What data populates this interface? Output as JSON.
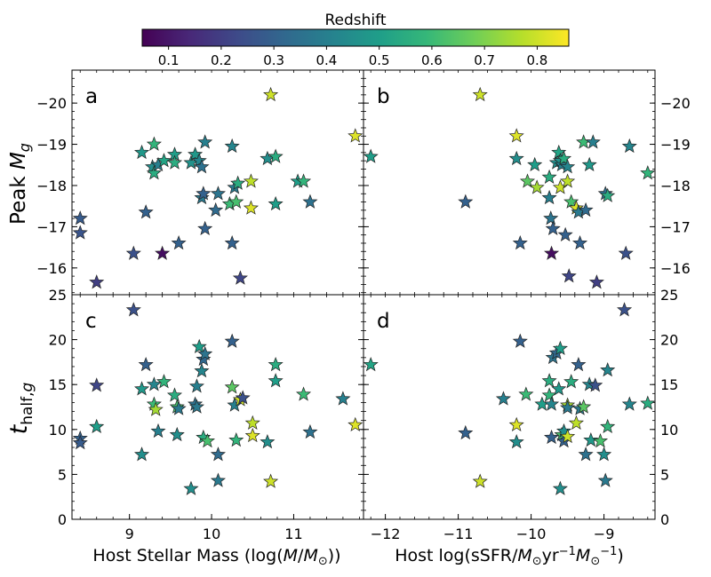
{
  "colorbar": {
    "label": "Redshift",
    "range": [
      0.05,
      0.86
    ],
    "ticks": [
      0.1,
      0.2,
      0.3,
      0.4,
      0.5,
      0.6,
      0.7,
      0.8
    ],
    "tick_labels": [
      "0.1",
      "0.2",
      "0.3",
      "0.4",
      "0.5",
      "0.6",
      "0.7",
      "0.8"
    ],
    "colormap": "viridis",
    "stops": [
      "#440154",
      "#482878",
      "#3e4a89",
      "#31688e",
      "#26828e",
      "#1f9e89",
      "#35b779",
      "#6ece58",
      "#b5de2b",
      "#fde725"
    ]
  },
  "chart_data": [
    {
      "panel_label": "a",
      "type": "scatter",
      "marker": "star",
      "xlabel": "",
      "ylabel": "Peak M_g",
      "xlim": [
        8.3,
        11.85
      ],
      "ylim": [
        -15.35,
        -20.8
      ],
      "y_inverted": true,
      "xticks": [],
      "xtick_labels": [],
      "yticks": [
        -16,
        -17,
        -18,
        -19,
        -20
      ],
      "ytick_labels": [
        "−16",
        "−17",
        "−18",
        "−19",
        "−20"
      ],
      "ytick_side": "left",
      "points": [
        {
          "x": 8.4,
          "y": -17.2,
          "z": 0.28
        },
        {
          "x": 8.4,
          "y": -16.85,
          "z": 0.26
        },
        {
          "x": 8.6,
          "y": -15.65,
          "z": 0.2
        },
        {
          "x": 9.05,
          "y": -16.35,
          "z": 0.25
        },
        {
          "x": 9.15,
          "y": -18.8,
          "z": 0.48
        },
        {
          "x": 9.2,
          "y": -17.35,
          "z": 0.3
        },
        {
          "x": 9.28,
          "y": -18.45,
          "z": 0.45
        },
        {
          "x": 9.3,
          "y": -19.0,
          "z": 0.58
        },
        {
          "x": 9.3,
          "y": -18.3,
          "z": 0.55
        },
        {
          "x": 9.35,
          "y": -18.5,
          "z": 0.4
        },
        {
          "x": 9.4,
          "y": -16.35,
          "z": 0.08
        },
        {
          "x": 9.42,
          "y": -18.6,
          "z": 0.52
        },
        {
          "x": 9.55,
          "y": -18.75,
          "z": 0.5
        },
        {
          "x": 9.55,
          "y": -18.55,
          "z": 0.55
        },
        {
          "x": 9.6,
          "y": -16.6,
          "z": 0.3
        },
        {
          "x": 9.75,
          "y": -18.55,
          "z": 0.46
        },
        {
          "x": 9.8,
          "y": -18.75,
          "z": 0.48
        },
        {
          "x": 9.85,
          "y": -18.6,
          "z": 0.42
        },
        {
          "x": 9.88,
          "y": -18.45,
          "z": 0.35
        },
        {
          "x": 9.88,
          "y": -17.7,
          "z": 0.38
        },
        {
          "x": 9.9,
          "y": -17.8,
          "z": 0.3
        },
        {
          "x": 9.92,
          "y": -19.05,
          "z": 0.4
        },
        {
          "x": 9.92,
          "y": -16.95,
          "z": 0.3
        },
        {
          "x": 10.05,
          "y": -17.4,
          "z": 0.33
        },
        {
          "x": 10.08,
          "y": -17.8,
          "z": 0.36
        },
        {
          "x": 10.22,
          "y": -17.55,
          "z": 0.6
        },
        {
          "x": 10.25,
          "y": -18.95,
          "z": 0.42
        },
        {
          "x": 10.25,
          "y": -16.6,
          "z": 0.3
        },
        {
          "x": 10.28,
          "y": -17.95,
          "z": 0.38
        },
        {
          "x": 10.3,
          "y": -17.6,
          "z": 0.62
        },
        {
          "x": 10.32,
          "y": -18.05,
          "z": 0.55
        },
        {
          "x": 10.35,
          "y": -15.75,
          "z": 0.22
        },
        {
          "x": 10.48,
          "y": -18.1,
          "z": 0.78
        },
        {
          "x": 10.48,
          "y": -17.45,
          "z": 0.82
        },
        {
          "x": 10.68,
          "y": -18.65,
          "z": 0.45
        },
        {
          "x": 10.72,
          "y": -20.2,
          "z": 0.8
        },
        {
          "x": 10.78,
          "y": -18.7,
          "z": 0.55
        },
        {
          "x": 10.78,
          "y": -17.55,
          "z": 0.5
        },
        {
          "x": 11.05,
          "y": -18.1,
          "z": 0.5
        },
        {
          "x": 11.12,
          "y": -18.1,
          "z": 0.58
        },
        {
          "x": 11.2,
          "y": -17.6,
          "z": 0.35
        },
        {
          "x": 11.75,
          "y": -19.2,
          "z": 0.82
        }
      ]
    },
    {
      "panel_label": "b",
      "type": "scatter",
      "marker": "star",
      "xlabel": "",
      "ylabel": "",
      "xlim": [
        -12.3,
        -8.3
      ],
      "ylim": [
        -15.35,
        -20.8
      ],
      "y_inverted": true,
      "xticks": [],
      "xtick_labels": [],
      "yticks": [
        -16,
        -17,
        -18,
        -19,
        -20
      ],
      "ytick_labels": [
        "−16",
        "−17",
        "−18",
        "−19",
        "−20"
      ],
      "ytick_side": "right",
      "points": [
        {
          "x": -12.2,
          "y": -18.7,
          "z": 0.5
        },
        {
          "x": -10.9,
          "y": -17.6,
          "z": 0.3
        },
        {
          "x": -10.7,
          "y": -20.2,
          "z": 0.8
        },
        {
          "x": -10.2,
          "y": -19.2,
          "z": 0.82
        },
        {
          "x": -10.2,
          "y": -18.65,
          "z": 0.45
        },
        {
          "x": -10.15,
          "y": -16.6,
          "z": 0.3
        },
        {
          "x": -10.05,
          "y": -18.1,
          "z": 0.65
        },
        {
          "x": -9.95,
          "y": -18.5,
          "z": 0.5
        },
        {
          "x": -9.92,
          "y": -17.95,
          "z": 0.75
        },
        {
          "x": -9.75,
          "y": -18.2,
          "z": 0.55
        },
        {
          "x": -9.75,
          "y": -17.7,
          "z": 0.4
        },
        {
          "x": -9.73,
          "y": -17.2,
          "z": 0.36
        },
        {
          "x": -9.72,
          "y": -16.35,
          "z": 0.08
        },
        {
          "x": -9.7,
          "y": -16.95,
          "z": 0.3
        },
        {
          "x": -9.65,
          "y": -18.55,
          "z": 0.45
        },
        {
          "x": -9.62,
          "y": -18.8,
          "z": 0.52
        },
        {
          "x": -9.6,
          "y": -18.6,
          "z": 0.46
        },
        {
          "x": -9.6,
          "y": -17.95,
          "z": 0.8
        },
        {
          "x": -9.58,
          "y": -18.5,
          "z": 0.4
        },
        {
          "x": -9.55,
          "y": -18.65,
          "z": 0.55
        },
        {
          "x": -9.53,
          "y": -16.8,
          "z": 0.3
        },
        {
          "x": -9.5,
          "y": -18.45,
          "z": 0.42
        },
        {
          "x": -9.5,
          "y": -18.1,
          "z": 0.78
        },
        {
          "x": -9.48,
          "y": -15.8,
          "z": 0.22
        },
        {
          "x": -9.45,
          "y": -17.6,
          "z": 0.62
        },
        {
          "x": -9.38,
          "y": -17.45,
          "z": 0.82
        },
        {
          "x": -9.35,
          "y": -17.35,
          "z": 0.38
        },
        {
          "x": -9.33,
          "y": -16.6,
          "z": 0.3
        },
        {
          "x": -9.28,
          "y": -19.05,
          "z": 0.6
        },
        {
          "x": -9.25,
          "y": -17.4,
          "z": 0.33
        },
        {
          "x": -9.2,
          "y": -18.5,
          "z": 0.48
        },
        {
          "x": -9.15,
          "y": -19.05,
          "z": 0.4
        },
        {
          "x": -9.1,
          "y": -15.65,
          "z": 0.2
        },
        {
          "x": -8.98,
          "y": -17.8,
          "z": 0.35
        },
        {
          "x": -8.95,
          "y": -17.75,
          "z": 0.55
        },
        {
          "x": -8.7,
          "y": -16.35,
          "z": 0.25
        },
        {
          "x": -8.65,
          "y": -18.95,
          "z": 0.42
        },
        {
          "x": -8.4,
          "y": -18.3,
          "z": 0.58
        }
      ]
    },
    {
      "panel_label": "c",
      "type": "scatter",
      "marker": "star",
      "xlabel": "Host Stellar Mass (log(M/M☉))",
      "ylabel": "t_half,g",
      "xlim": [
        8.3,
        11.85
      ],
      "ylim": [
        0,
        25
      ],
      "y_inverted": false,
      "xticks": [
        9,
        10,
        11
      ],
      "xtick_labels": [
        "9",
        "10",
        "11"
      ],
      "yticks": [
        0,
        5,
        10,
        15,
        20,
        25
      ],
      "ytick_labels": [
        "0",
        "5",
        "10",
        "15",
        "20",
        "25"
      ],
      "ytick_side": "left",
      "points": [
        {
          "x": 8.4,
          "y": 9.0,
          "z": 0.3
        },
        {
          "x": 8.4,
          "y": 8.5,
          "z": 0.28
        },
        {
          "x": 8.6,
          "y": 14.9,
          "z": 0.22
        },
        {
          "x": 8.6,
          "y": 10.3,
          "z": 0.5
        },
        {
          "x": 9.05,
          "y": 23.3,
          "z": 0.25
        },
        {
          "x": 9.15,
          "y": 14.5,
          "z": 0.48
        },
        {
          "x": 9.15,
          "y": 7.2,
          "z": 0.45
        },
        {
          "x": 9.2,
          "y": 17.2,
          "z": 0.3
        },
        {
          "x": 9.3,
          "y": 15.0,
          "z": 0.42
        },
        {
          "x": 9.3,
          "y": 12.8,
          "z": 0.6
        },
        {
          "x": 9.32,
          "y": 12.2,
          "z": 0.75
        },
        {
          "x": 9.35,
          "y": 9.8,
          "z": 0.4
        },
        {
          "x": 9.42,
          "y": 15.3,
          "z": 0.58
        },
        {
          "x": 9.55,
          "y": 13.8,
          "z": 0.55
        },
        {
          "x": 9.58,
          "y": 12.5,
          "z": 0.62
        },
        {
          "x": 9.58,
          "y": 9.4,
          "z": 0.45
        },
        {
          "x": 9.6,
          "y": 12.3,
          "z": 0.38
        },
        {
          "x": 9.75,
          "y": 3.4,
          "z": 0.45
        },
        {
          "x": 9.8,
          "y": 12.8,
          "z": 0.35
        },
        {
          "x": 9.82,
          "y": 12.5,
          "z": 0.38
        },
        {
          "x": 9.82,
          "y": 14.8,
          "z": 0.4
        },
        {
          "x": 9.85,
          "y": 19.2,
          "z": 0.5
        },
        {
          "x": 9.88,
          "y": 16.5,
          "z": 0.42
        },
        {
          "x": 9.9,
          "y": 17.8,
          "z": 0.32
        },
        {
          "x": 9.92,
          "y": 18.4,
          "z": 0.36
        },
        {
          "x": 9.9,
          "y": 9.1,
          "z": 0.55
        },
        {
          "x": 9.95,
          "y": 8.7,
          "z": 0.62
        },
        {
          "x": 10.08,
          "y": 4.3,
          "z": 0.38
        },
        {
          "x": 10.08,
          "y": 7.2,
          "z": 0.33
        },
        {
          "x": 10.25,
          "y": 19.8,
          "z": 0.3
        },
        {
          "x": 10.25,
          "y": 14.7,
          "z": 0.65
        },
        {
          "x": 10.28,
          "y": 12.7,
          "z": 0.4
        },
        {
          "x": 10.3,
          "y": 8.8,
          "z": 0.58
        },
        {
          "x": 10.35,
          "y": 13.3,
          "z": 0.8
        },
        {
          "x": 10.38,
          "y": 13.5,
          "z": 0.25
        },
        {
          "x": 10.5,
          "y": 10.7,
          "z": 0.78
        },
        {
          "x": 10.5,
          "y": 9.3,
          "z": 0.82
        },
        {
          "x": 10.68,
          "y": 8.6,
          "z": 0.45
        },
        {
          "x": 10.72,
          "y": 4.2,
          "z": 0.8
        },
        {
          "x": 10.78,
          "y": 17.2,
          "z": 0.55
        },
        {
          "x": 10.78,
          "y": 15.4,
          "z": 0.5
        },
        {
          "x": 11.12,
          "y": 13.9,
          "z": 0.6
        },
        {
          "x": 11.2,
          "y": 9.7,
          "z": 0.35
        },
        {
          "x": 11.6,
          "y": 13.4,
          "z": 0.4
        },
        {
          "x": 11.75,
          "y": 10.5,
          "z": 0.82
        }
      ]
    },
    {
      "panel_label": "d",
      "type": "scatter",
      "marker": "star",
      "xlabel": "Host log(sSFR/M☉yr⁻¹M☉⁻¹)",
      "ylabel": "",
      "xlim": [
        -12.3,
        -8.3
      ],
      "ylim": [
        0,
        25
      ],
      "y_inverted": false,
      "xticks": [
        -12,
        -11,
        -10,
        -9
      ],
      "xtick_labels": [
        "−12",
        "−11",
        "−10",
        "−9"
      ],
      "yticks": [
        0,
        5,
        10,
        15,
        20,
        25
      ],
      "ytick_labels": [
        "0",
        "5",
        "10",
        "15",
        "20",
        "25"
      ],
      "ytick_side": "right",
      "points": [
        {
          "x": -12.2,
          "y": 17.2,
          "z": 0.52
        },
        {
          "x": -10.9,
          "y": 9.6,
          "z": 0.3
        },
        {
          "x": -10.7,
          "y": 4.2,
          "z": 0.8
        },
        {
          "x": -10.38,
          "y": 13.4,
          "z": 0.4
        },
        {
          "x": -10.2,
          "y": 10.5,
          "z": 0.82
        },
        {
          "x": -10.2,
          "y": 8.6,
          "z": 0.45
        },
        {
          "x": -10.15,
          "y": 19.8,
          "z": 0.3
        },
        {
          "x": -10.07,
          "y": 13.9,
          "z": 0.6
        },
        {
          "x": -9.85,
          "y": 12.8,
          "z": 0.5
        },
        {
          "x": -9.75,
          "y": 15.4,
          "z": 0.55
        },
        {
          "x": -9.75,
          "y": 13.8,
          "z": 0.58
        },
        {
          "x": -9.72,
          "y": 9.1,
          "z": 0.3
        },
        {
          "x": -9.72,
          "y": 12.8,
          "z": 0.42
        },
        {
          "x": -9.7,
          "y": 18.0,
          "z": 0.36
        },
        {
          "x": -9.65,
          "y": 18.5,
          "z": 0.32
        },
        {
          "x": -9.62,
          "y": 14.5,
          "z": 0.48
        },
        {
          "x": -9.6,
          "y": 19.0,
          "z": 0.5
        },
        {
          "x": -9.6,
          "y": 3.4,
          "z": 0.45
        },
        {
          "x": -9.58,
          "y": 9.4,
          "z": 0.62
        },
        {
          "x": -9.55,
          "y": 9.8,
          "z": 0.45
        },
        {
          "x": -9.55,
          "y": 8.7,
          "z": 0.3
        },
        {
          "x": -9.5,
          "y": 12.7,
          "z": 0.75
        },
        {
          "x": -9.5,
          "y": 12.4,
          "z": 0.38
        },
        {
          "x": -9.5,
          "y": 9.2,
          "z": 0.8
        },
        {
          "x": -9.45,
          "y": 15.3,
          "z": 0.55
        },
        {
          "x": -9.38,
          "y": 10.7,
          "z": 0.78
        },
        {
          "x": -9.35,
          "y": 17.2,
          "z": 0.3
        },
        {
          "x": -9.33,
          "y": 12.3,
          "z": 0.38
        },
        {
          "x": -9.28,
          "y": 12.5,
          "z": 0.65
        },
        {
          "x": -9.25,
          "y": 7.2,
          "z": 0.35
        },
        {
          "x": -9.2,
          "y": 15.0,
          "z": 0.42
        },
        {
          "x": -9.18,
          "y": 8.8,
          "z": 0.48
        },
        {
          "x": -9.12,
          "y": 14.9,
          "z": 0.25
        },
        {
          "x": -9.05,
          "y": 8.7,
          "z": 0.62
        },
        {
          "x": -9.0,
          "y": 7.2,
          "z": 0.45
        },
        {
          "x": -8.98,
          "y": 4.3,
          "z": 0.38
        },
        {
          "x": -8.95,
          "y": 16.6,
          "z": 0.42
        },
        {
          "x": -8.95,
          "y": 10.3,
          "z": 0.58
        },
        {
          "x": -8.72,
          "y": 23.3,
          "z": 0.25
        },
        {
          "x": -8.65,
          "y": 12.8,
          "z": 0.42
        },
        {
          "x": -8.4,
          "y": 12.9,
          "z": 0.55
        }
      ]
    }
  ]
}
